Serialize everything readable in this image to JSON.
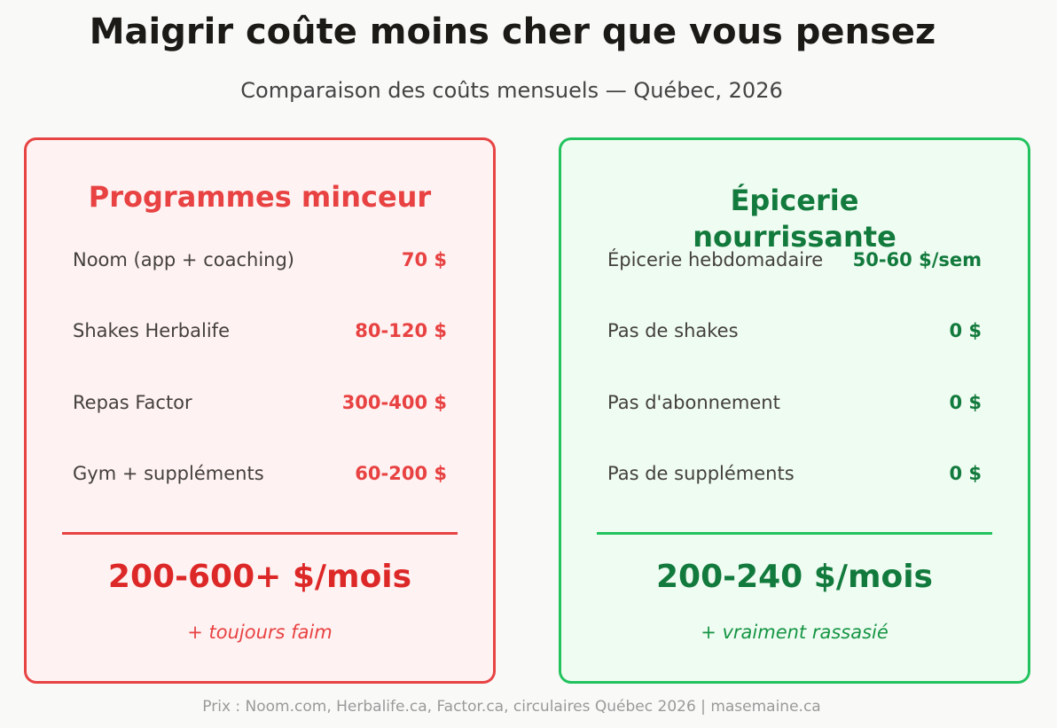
{
  "header": {
    "title": "Maigrir coûte moins cher que vous pensez",
    "subtitle": "Comparaison des coûts mensuels — Québec, 2026"
  },
  "left_card": {
    "title": "Programmes minceur",
    "rows": [
      {
        "label": "Noom (app + coaching)",
        "value": "70 $"
      },
      {
        "label": "Shakes Herbalife",
        "value": "80-120 $"
      },
      {
        "label": "Repas Factor",
        "value": "300-400 $"
      },
      {
        "label": "Gym + suppléments",
        "value": "60-200 $"
      }
    ],
    "total": "200-600+ $/mois",
    "note": "+ toujours faim"
  },
  "right_card": {
    "title_line1": "Épicerie",
    "title_line2": "nourrissante",
    "rows": [
      {
        "label": "Épicerie hebdomadaire",
        "value": "50-60 $/sem"
      },
      {
        "label": "Pas de shakes",
        "value": "0 $"
      },
      {
        "label": "Pas d'abonnement",
        "value": "0 $"
      },
      {
        "label": "Pas de suppléments",
        "value": "0 $"
      }
    ],
    "total": "200-240 $/mois",
    "note": "+ vraiment rassasié"
  },
  "footer": {
    "text": "Prix : Noom.com, Herbalife.ca, Factor.ca, circulaires Québec 2026  |  masemaine.ca"
  },
  "colors": {
    "background": "#f9f9f7",
    "red_accent": "#e74444",
    "red_bg": "#fff2f2",
    "green_accent": "#22c35e",
    "green_dark": "#127a3c",
    "green_bg": "#effcf2"
  }
}
